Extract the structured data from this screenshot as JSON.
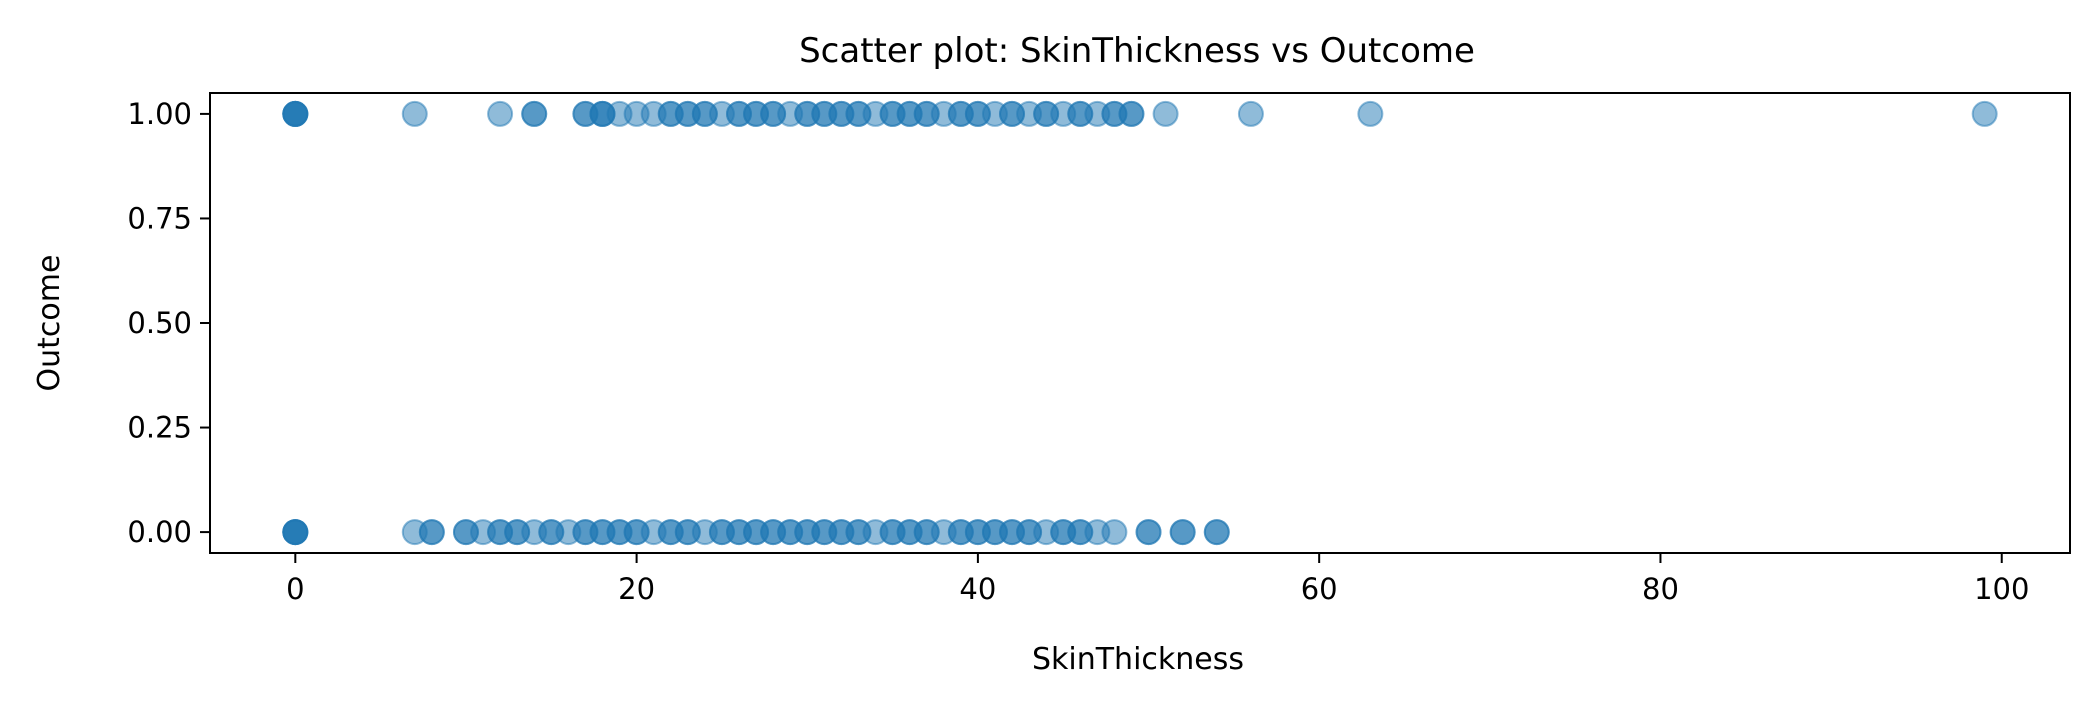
{
  "chart_data": {
    "type": "scatter",
    "title": "Scatter plot: SkinThickness vs Outcome",
    "xlabel": "SkinThickness",
    "ylabel": "Outcome",
    "xlim": [
      -5,
      104
    ],
    "ylim": [
      -0.05,
      1.05
    ],
    "xticks": [
      0,
      20,
      40,
      60,
      80,
      100
    ],
    "xtick_labels": [
      "0",
      "20",
      "40",
      "60",
      "80",
      "100"
    ],
    "yticks": [
      0.0,
      0.25,
      0.5,
      0.75,
      1.0
    ],
    "ytick_labels": [
      "0.00",
      "0.25",
      "0.50",
      "0.75",
      "1.00"
    ],
    "grid": false,
    "series": [
      {
        "color": "#1f77b4",
        "opacity": 0.5,
        "points": [
          [
            0,
            1
          ],
          [
            0,
            1
          ],
          [
            0,
            1
          ],
          [
            0,
            1
          ],
          [
            0,
            1
          ],
          [
            7,
            1
          ],
          [
            12,
            1
          ],
          [
            14,
            1
          ],
          [
            14,
            1
          ],
          [
            17,
            1
          ],
          [
            17,
            1
          ],
          [
            18,
            1
          ],
          [
            18,
            1
          ],
          [
            18,
            1
          ],
          [
            19,
            1
          ],
          [
            20,
            1
          ],
          [
            21,
            1
          ],
          [
            22,
            1
          ],
          [
            22,
            1
          ],
          [
            23,
            1
          ],
          [
            23,
            1
          ],
          [
            24,
            1
          ],
          [
            24,
            1
          ],
          [
            25,
            1
          ],
          [
            26,
            1
          ],
          [
            26,
            1
          ],
          [
            27,
            1
          ],
          [
            27,
            1
          ],
          [
            28,
            1
          ],
          [
            28,
            1
          ],
          [
            29,
            1
          ],
          [
            30,
            1
          ],
          [
            30,
            1
          ],
          [
            31,
            1
          ],
          [
            31,
            1
          ],
          [
            32,
            1
          ],
          [
            32,
            1
          ],
          [
            33,
            1
          ],
          [
            33,
            1
          ],
          [
            34,
            1
          ],
          [
            35,
            1
          ],
          [
            35,
            1
          ],
          [
            36,
            1
          ],
          [
            36,
            1
          ],
          [
            37,
            1
          ],
          [
            37,
            1
          ],
          [
            38,
            1
          ],
          [
            39,
            1
          ],
          [
            39,
            1
          ],
          [
            40,
            1
          ],
          [
            40,
            1
          ],
          [
            41,
            1
          ],
          [
            42,
            1
          ],
          [
            42,
            1
          ],
          [
            43,
            1
          ],
          [
            44,
            1
          ],
          [
            44,
            1
          ],
          [
            45,
            1
          ],
          [
            46,
            1
          ],
          [
            46,
            1
          ],
          [
            47,
            1
          ],
          [
            48,
            1
          ],
          [
            48,
            1
          ],
          [
            49,
            1
          ],
          [
            49,
            1
          ],
          [
            51,
            1
          ],
          [
            56,
            1
          ],
          [
            63,
            1
          ],
          [
            99,
            1
          ],
          [
            0,
            0
          ],
          [
            0,
            0
          ],
          [
            0,
            0
          ],
          [
            0,
            0
          ],
          [
            0,
            0
          ],
          [
            7,
            0
          ],
          [
            8,
            0
          ],
          [
            8,
            0
          ],
          [
            10,
            0
          ],
          [
            10,
            0
          ],
          [
            11,
            0
          ],
          [
            12,
            0
          ],
          [
            12,
            0
          ],
          [
            13,
            0
          ],
          [
            13,
            0
          ],
          [
            14,
            0
          ],
          [
            15,
            0
          ],
          [
            15,
            0
          ],
          [
            16,
            0
          ],
          [
            17,
            0
          ],
          [
            17,
            0
          ],
          [
            18,
            0
          ],
          [
            18,
            0
          ],
          [
            19,
            0
          ],
          [
            19,
            0
          ],
          [
            20,
            0
          ],
          [
            20,
            0
          ],
          [
            21,
            0
          ],
          [
            22,
            0
          ],
          [
            22,
            0
          ],
          [
            23,
            0
          ],
          [
            23,
            0
          ],
          [
            24,
            0
          ],
          [
            25,
            0
          ],
          [
            25,
            0
          ],
          [
            26,
            0
          ],
          [
            26,
            0
          ],
          [
            27,
            0
          ],
          [
            27,
            0
          ],
          [
            28,
            0
          ],
          [
            28,
            0
          ],
          [
            29,
            0
          ],
          [
            29,
            0
          ],
          [
            30,
            0
          ],
          [
            30,
            0
          ],
          [
            31,
            0
          ],
          [
            31,
            0
          ],
          [
            32,
            0
          ],
          [
            32,
            0
          ],
          [
            33,
            0
          ],
          [
            33,
            0
          ],
          [
            34,
            0
          ],
          [
            35,
            0
          ],
          [
            35,
            0
          ],
          [
            36,
            0
          ],
          [
            36,
            0
          ],
          [
            37,
            0
          ],
          [
            37,
            0
          ],
          [
            38,
            0
          ],
          [
            39,
            0
          ],
          [
            39,
            0
          ],
          [
            40,
            0
          ],
          [
            40,
            0
          ],
          [
            41,
            0
          ],
          [
            41,
            0
          ],
          [
            42,
            0
          ],
          [
            42,
            0
          ],
          [
            43,
            0
          ],
          [
            43,
            0
          ],
          [
            44,
            0
          ],
          [
            45,
            0
          ],
          [
            45,
            0
          ],
          [
            46,
            0
          ],
          [
            46,
            0
          ],
          [
            47,
            0
          ],
          [
            48,
            0
          ],
          [
            50,
            0
          ],
          [
            50,
            0
          ],
          [
            52,
            0
          ],
          [
            52,
            0
          ],
          [
            54,
            0
          ],
          [
            54,
            0
          ]
        ]
      }
    ]
  }
}
